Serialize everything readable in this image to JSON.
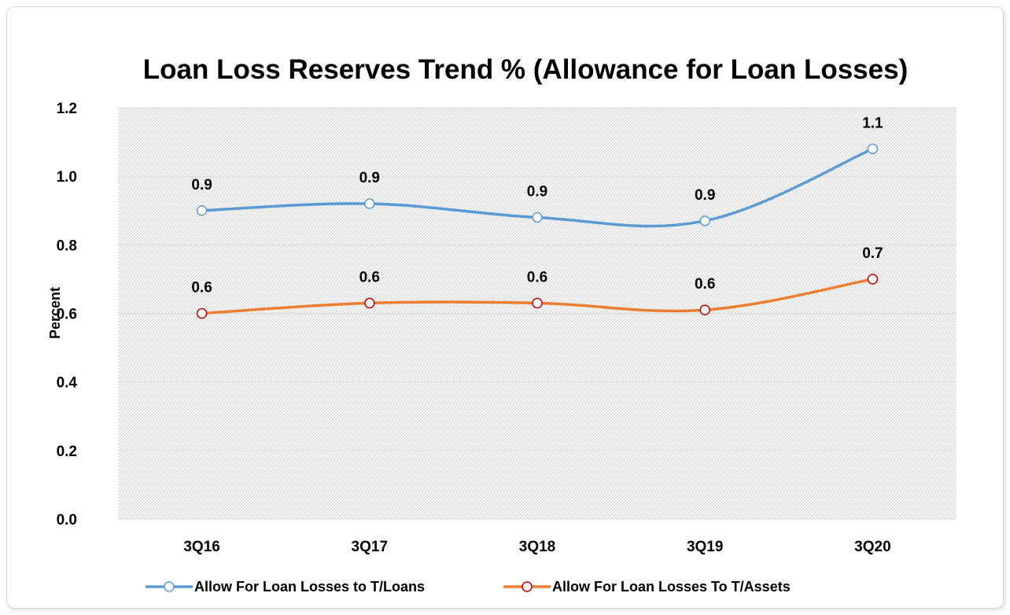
{
  "chart_data": {
    "type": "line",
    "title": "Loan Loss Reserves Trend % (Allowance for Loan Losses)",
    "xlabel": "",
    "ylabel": "Percent",
    "categories": [
      "3Q16",
      "3Q17",
      "3Q18",
      "3Q19",
      "3Q20"
    ],
    "ylim": [
      0.0,
      1.2
    ],
    "yticks": [
      "0.0",
      "0.2",
      "0.4",
      "0.6",
      "0.8",
      "1.0",
      "1.2"
    ],
    "grid": true,
    "legend_position": "bottom",
    "series": [
      {
        "name": "Allow For Loan Losses to T/Loans",
        "values": [
          0.9,
          0.92,
          0.88,
          0.87,
          1.08
        ],
        "labels": [
          "0.9",
          "0.9",
          "0.9",
          "0.9",
          "1.1"
        ],
        "color": "#5b9bd5"
      },
      {
        "name": "Allow For Loan Losses To T/Assets",
        "values": [
          0.6,
          0.63,
          0.63,
          0.61,
          0.7
        ],
        "labels": [
          "0.6",
          "0.6",
          "0.6",
          "0.6",
          "0.7"
        ],
        "color": "#ed7d31",
        "marker_edge": "#c00000"
      }
    ]
  }
}
